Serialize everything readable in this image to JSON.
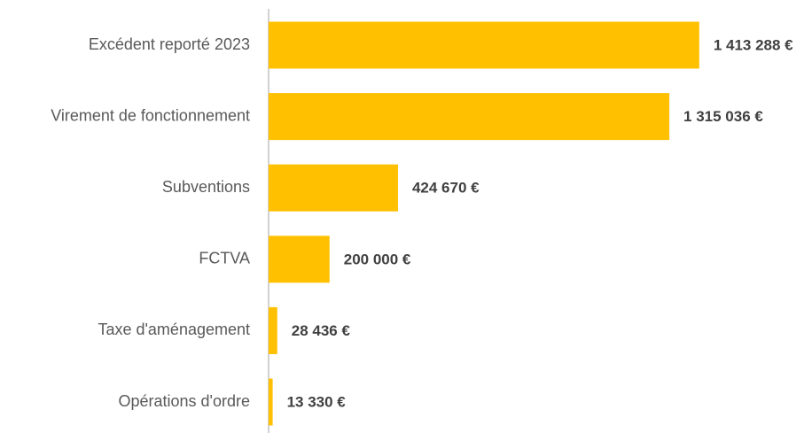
{
  "chart_data": {
    "type": "hbar",
    "categories": [
      "Excédent reporté 2023",
      "Virement de fonctionnement",
      "Subventions",
      "FCTVA",
      "Taxe d'aménagement",
      "Opérations d'ordre"
    ],
    "values": [
      1413288,
      1315036,
      424670,
      200000,
      28436,
      13330
    ],
    "value_labels": [
      "1 413 288 €",
      "1 315 036 €",
      "424 670 €",
      "200 000 €",
      "28 436 €",
      "13 330 €"
    ],
    "color": "#FFC000",
    "xlim": [
      0,
      1600000
    ]
  }
}
